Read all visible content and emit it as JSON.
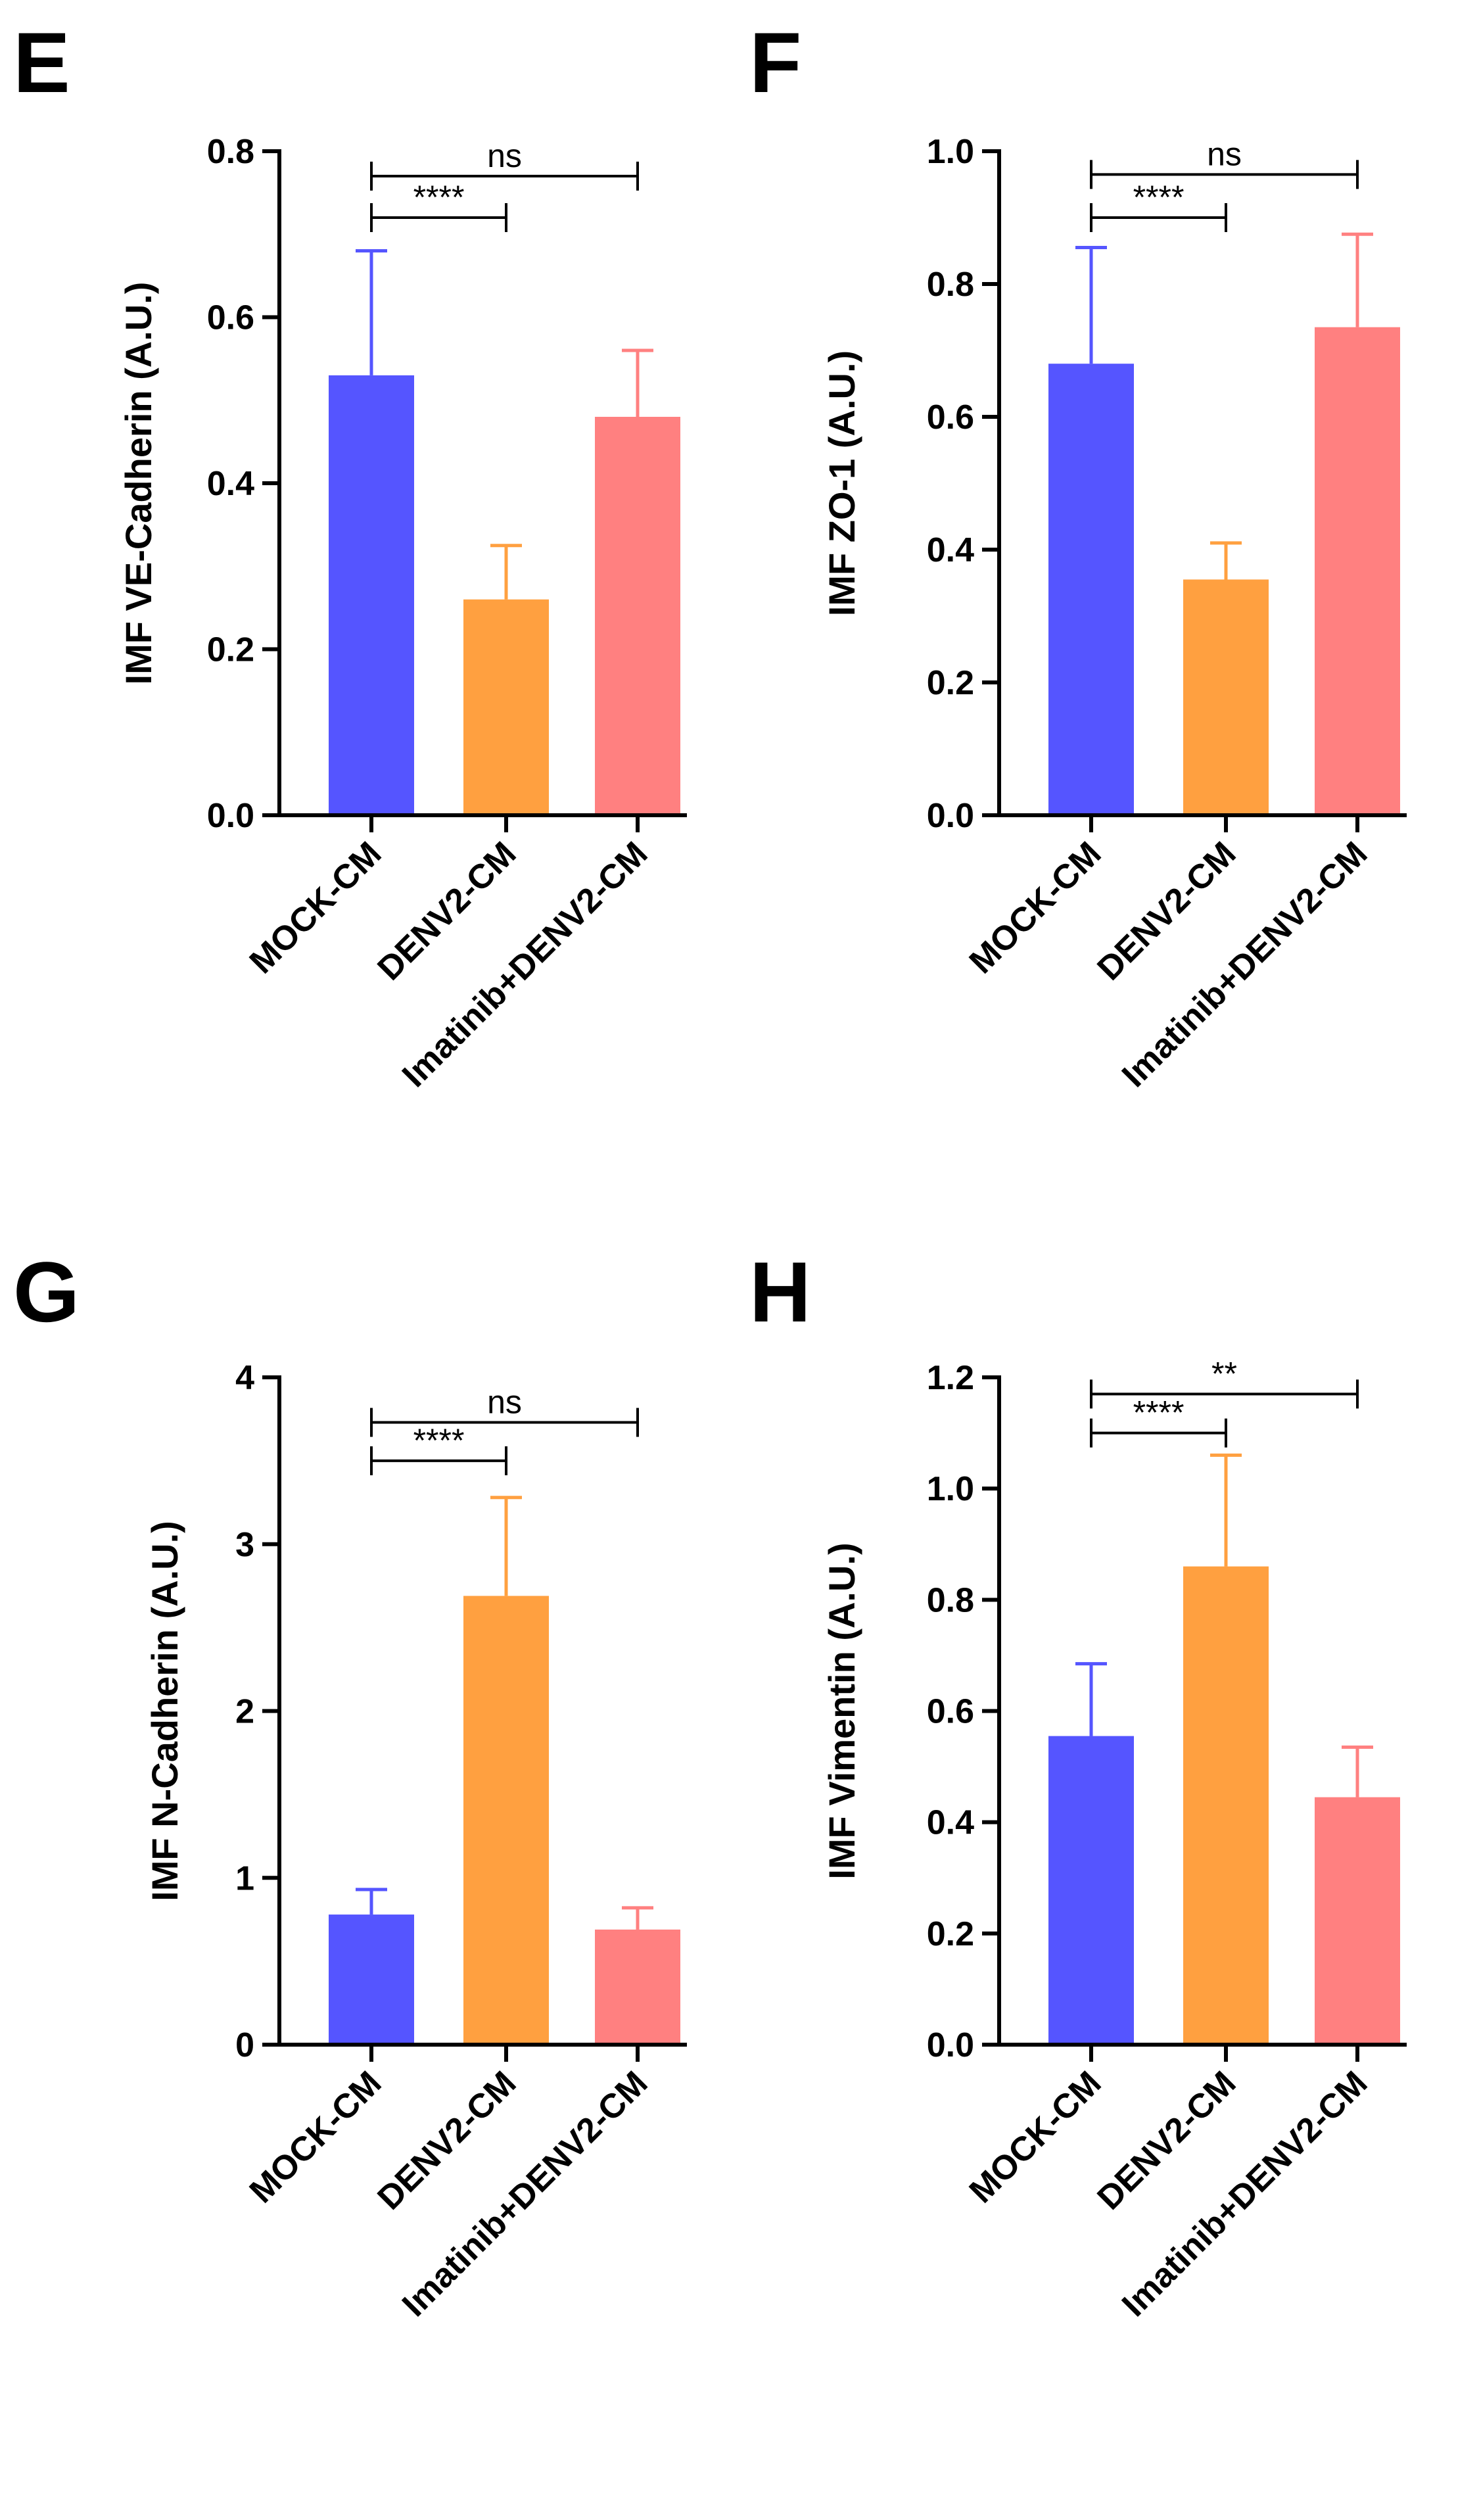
{
  "chart_data": [
    {
      "type": "bar",
      "panel": "E",
      "ylabel": "IMF VE-Cadherin  (A.U.)",
      "ylim": [
        0,
        0.8
      ],
      "yticks": [
        "0.0",
        "0.2",
        "0.4",
        "0.6",
        "0.8"
      ],
      "categories": [
        "MOCK-CM",
        "DENV2-CM",
        "Imatinib+DENV2-CM"
      ],
      "values": [
        0.53,
        0.26,
        0.48
      ],
      "errors": [
        0.15,
        0.065,
        0.08
      ],
      "colors": [
        "#5555ff",
        "#ffa040",
        "#ff8080"
      ],
      "annotations": [
        {
          "from": 0,
          "to": 2,
          "label": "ns",
          "level": 0.77
        },
        {
          "from": 0,
          "to": 1,
          "label": "****",
          "level": 0.72
        }
      ]
    },
    {
      "type": "bar",
      "panel": "F",
      "ylabel": "IMF ZO-1 (A.U.)",
      "ylim": [
        0,
        1.0
      ],
      "yticks": [
        "0.0",
        "0.2",
        "0.4",
        "0.6",
        "0.8",
        "1.0"
      ],
      "categories": [
        "MOCK-CM",
        "DENV2-CM",
        "Imatinib+DENV2-CM"
      ],
      "values": [
        0.68,
        0.355,
        0.735
      ],
      "errors": [
        0.175,
        0.055,
        0.14
      ],
      "colors": [
        "#5555ff",
        "#ffa040",
        "#ff8080"
      ],
      "annotations": [
        {
          "from": 0,
          "to": 2,
          "label": "ns",
          "level": 0.965
        },
        {
          "from": 0,
          "to": 1,
          "label": "****",
          "level": 0.9
        }
      ]
    },
    {
      "type": "bar",
      "panel": "G",
      "ylabel": "IMF N-Cadherin (A.U.)",
      "ylim": [
        0,
        4
      ],
      "yticks": [
        "0",
        "1",
        "2",
        "3",
        "4"
      ],
      "categories": [
        "MOCK-CM",
        "DENV2-CM",
        "Imatinib+DENV2-CM"
      ],
      "values": [
        0.78,
        2.69,
        0.69
      ],
      "errors": [
        0.15,
        0.59,
        0.13
      ],
      "colors": [
        "#5555ff",
        "#ffa040",
        "#ff8080"
      ],
      "annotations": [
        {
          "from": 0,
          "to": 2,
          "label": "ns",
          "level": 3.73
        },
        {
          "from": 0,
          "to": 1,
          "label": "****",
          "level": 3.5
        }
      ]
    },
    {
      "type": "bar",
      "panel": "H",
      "ylabel": "IMF Vimentin  (A.U.)",
      "ylim": [
        0,
        1.2
      ],
      "yticks": [
        "0.0",
        "0.2",
        "0.4",
        "0.6",
        "0.8",
        "1.0",
        "1.2"
      ],
      "categories": [
        "MOCK-CM",
        "DENV2-CM",
        "Imatinib+DENV2-CM"
      ],
      "values": [
        0.555,
        0.86,
        0.445
      ],
      "errors": [
        0.13,
        0.2,
        0.09
      ],
      "colors": [
        "#5555ff",
        "#ffa040",
        "#ff8080"
      ],
      "annotations": [
        {
          "from": 0,
          "to": 2,
          "label": "**",
          "level": 1.17
        },
        {
          "from": 0,
          "to": 1,
          "label": "****",
          "level": 1.1
        }
      ]
    }
  ]
}
